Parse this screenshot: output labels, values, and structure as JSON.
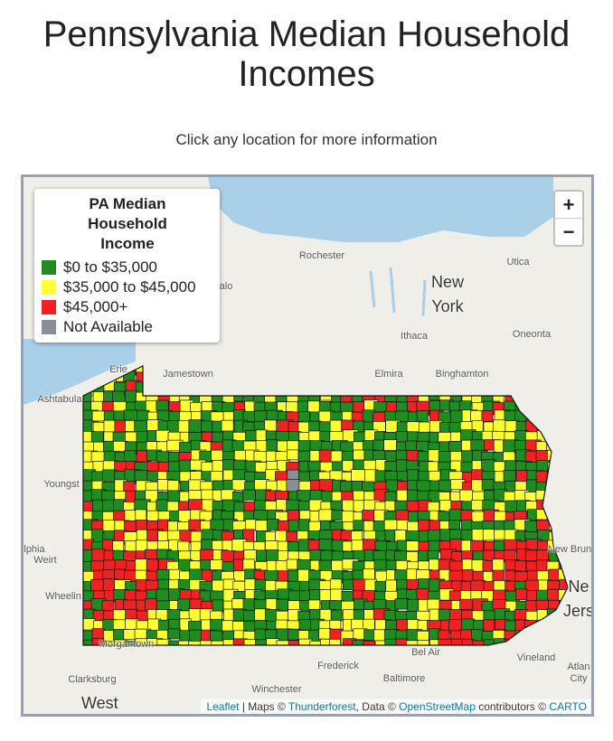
{
  "header": {
    "title": "Pennsylvania Median Household Incomes",
    "subtitle": "Click any location for more information"
  },
  "map": {
    "zoom_in": "+",
    "zoom_out": "−",
    "legend": {
      "title": "PA Median Household Income",
      "items": [
        {
          "label": "$0 to $35,000",
          "color": "#1e8c1e"
        },
        {
          "label": "$35,000 to $45,000",
          "color": "#ffff33"
        },
        {
          "label": "$45,000+",
          "color": "#ee2222"
        },
        {
          "label": "Not Available",
          "color": "#8a8f96"
        }
      ]
    },
    "labels": [
      "Rochester",
      "alo",
      "New York",
      "Utica",
      "Ithaca",
      "Oneonta",
      "Erie",
      "Jamestown",
      "Elmira",
      "Binghamton",
      "Ashtabula",
      "Youngst",
      "lphia",
      "Weirt",
      "Wheelin",
      "New Brun",
      "Ne Jers",
      "Morgantown",
      "Bel Air",
      "Frederick",
      "Baltimore",
      "Vineland",
      "Atlan City",
      "Clarksburg",
      "Winchester",
      "West"
    ],
    "attribution": [
      "Leaflet",
      " | Maps © ",
      "Thunderforest",
      ", Data © ",
      "OpenStreetMap",
      " contributors © ",
      "CARTO"
    ]
  }
}
